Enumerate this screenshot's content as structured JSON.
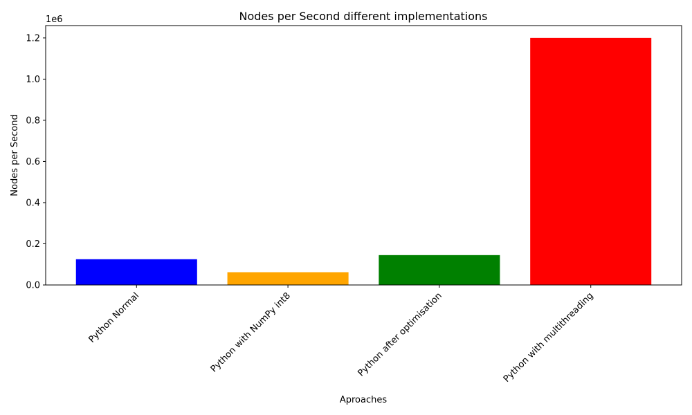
{
  "chart_data": {
    "type": "bar",
    "title": "Nodes per Second different implementations",
    "xlabel": "Aproaches",
    "ylabel": "Nodes per Second",
    "y_offset_label": "1e6",
    "categories": [
      "Python Normal",
      "Python with NumPy int8",
      "Python after optimisation",
      "Python with multithreading"
    ],
    "values": [
      125000,
      62000,
      145000,
      1200000
    ],
    "colors": [
      "#0000ff",
      "#ffa500",
      "#008000",
      "#ff0000"
    ],
    "ylim": [
      0,
      1260000
    ],
    "yticks": [
      0,
      200000,
      400000,
      600000,
      800000,
      1000000,
      1200000
    ],
    "ytick_labels": [
      "0.0",
      "0.2",
      "0.4",
      "0.6",
      "0.8",
      "1.0",
      "1.2"
    ],
    "grid": false,
    "legend": "none"
  }
}
